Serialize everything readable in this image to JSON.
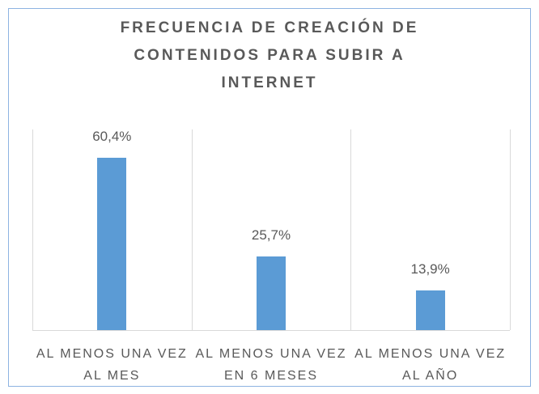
{
  "chart_data": {
    "type": "bar",
    "title": "FRECUENCIA DE CREACIÓN DE CONTENIDOS PARA SUBIR A INTERNET",
    "categories": [
      "AL MENOS UNA VEZ AL MES",
      "AL MENOS UNA VEZ EN 6 MESES",
      "AL MENOS UNA VEZ AL AÑO"
    ],
    "values": [
      60.4,
      25.7,
      13.9
    ],
    "value_labels": [
      "60,4%",
      "25,7%",
      "13,9%"
    ],
    "color": "#5b9bd5"
  }
}
